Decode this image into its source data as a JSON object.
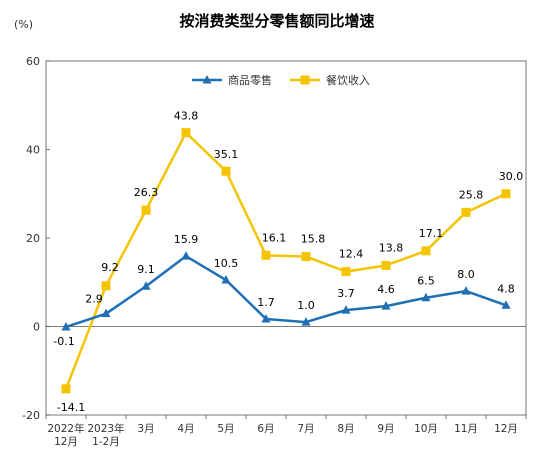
{
  "chart_data": {
    "type": "line",
    "title": "按消费类型分零售额同比增速",
    "unit_label": "(%)",
    "ylim": [
      -20,
      60
    ],
    "yticks": [
      -20,
      0,
      20,
      40,
      60
    ],
    "legend_position": "top-center",
    "grid": false,
    "categories": [
      [
        "2022年",
        "12月"
      ],
      [
        "2023年",
        "1-2月"
      ],
      [
        "3月"
      ],
      [
        "4月"
      ],
      [
        "5月"
      ],
      [
        "6月"
      ],
      [
        "7月"
      ],
      [
        "8月"
      ],
      [
        "9月"
      ],
      [
        "10月"
      ],
      [
        "11月"
      ],
      [
        "12月"
      ]
    ],
    "series": [
      {
        "name": "商品零售",
        "color": "#1f6fb5",
        "marker": "triangle",
        "values": [
          -0.1,
          2.9,
          9.1,
          15.9,
          10.5,
          1.7,
          1.0,
          3.7,
          4.6,
          6.5,
          8.0,
          4.8
        ],
        "labels": [
          "-0.1",
          "2.9",
          "9.1",
          "15.9",
          "10.5",
          "1.7",
          "1.0",
          "3.7",
          "4.6",
          "6.5",
          "8.0",
          "4.8"
        ]
      },
      {
        "name": "餐饮收入",
        "color": "#f5c400",
        "marker": "square",
        "values": [
          -14.1,
          9.2,
          26.3,
          43.8,
          35.1,
          16.1,
          15.8,
          12.4,
          13.8,
          17.1,
          25.8,
          30.0
        ],
        "labels": [
          "-14.1",
          "9.2",
          "26.3",
          "43.8",
          "35.1",
          "16.1",
          "15.8",
          "12.4",
          "13.8",
          "17.1",
          "25.8",
          "30.0"
        ]
      }
    ]
  }
}
